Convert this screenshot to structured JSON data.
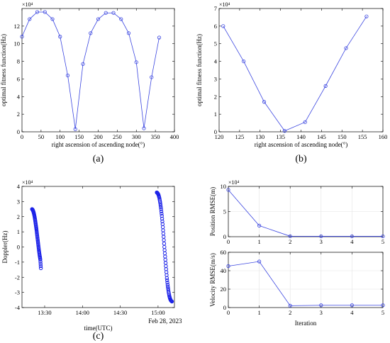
{
  "chart_data": [
    {
      "id": "a",
      "type": "line",
      "label": "(a)",
      "xlabel": "right ascension of ascending node(°)",
      "ylabel": "optimal fitness function(Hz)",
      "multiplier": "×10⁴",
      "xlim": [
        0,
        400
      ],
      "ylim": [
        0,
        140000
      ],
      "xticks": [
        0,
        50,
        100,
        150,
        200,
        250,
        300,
        350,
        400
      ],
      "yticks": [
        0,
        20000,
        40000,
        60000,
        80000,
        100000,
        120000
      ],
      "ytick_labels": [
        "0",
        "2",
        "4",
        "6",
        "8",
        "10",
        "12"
      ],
      "grid": false,
      "color": "#3b46e0",
      "x": [
        0,
        20,
        40,
        60,
        80,
        100,
        120,
        140,
        160,
        180,
        200,
        220,
        240,
        260,
        280,
        300,
        320,
        340,
        360
      ],
      "y": [
        108000,
        128000,
        136000,
        136000,
        128000,
        108000,
        64000,
        3000,
        77000,
        112000,
        128000,
        135000,
        135000,
        128000,
        112000,
        79000,
        4000,
        62000,
        107000
      ]
    },
    {
      "id": "b",
      "type": "line",
      "label": "(b)",
      "xlabel": "right ascension of ascending node(°)",
      "ylabel": "optimal fitness function(Hz)",
      "multiplier": "×10⁴",
      "xlim": [
        120,
        160
      ],
      "ylim": [
        0,
        70000
      ],
      "xticks": [
        120,
        125,
        130,
        135,
        140,
        145,
        150,
        155,
        160
      ],
      "yticks": [
        0,
        10000,
        20000,
        30000,
        40000,
        50000,
        60000,
        70000
      ],
      "ytick_labels": [
        "0",
        "1",
        "2",
        "3",
        "4",
        "5",
        "6",
        "7"
      ],
      "grid": false,
      "color": "#3b46e0",
      "x": [
        121,
        126,
        131,
        136,
        141,
        146,
        151,
        156
      ],
      "y": [
        60000,
        40000,
        17000,
        500,
        5500,
        26000,
        47500,
        65500
      ]
    },
    {
      "id": "c",
      "type": "scatter",
      "label": "(c)",
      "xlabel": "time(UTC)",
      "ylabel": "Doppler(Hz)",
      "multiplier": "×10⁴",
      "date_label": "Feb 28, 2023",
      "xlim": [
        "13:12",
        "15:13"
      ],
      "ylim": [
        -40000,
        40000
      ],
      "xticks": [
        "13:30",
        "14:00",
        "14:30",
        "15:00"
      ],
      "yticks": [
        -40000,
        -30000,
        -20000,
        -10000,
        0,
        10000,
        20000,
        30000,
        40000
      ],
      "ytick_labels": [
        "-4",
        "-3",
        "-2",
        "-1",
        "0",
        "1",
        "2",
        "3",
        "4"
      ],
      "grid": false,
      "color": "#1c22e8",
      "segments": [
        {
          "x_start": "13:20",
          "x_end": "13:27",
          "y": [
            25000,
            24500,
            23500,
            22000,
            20000,
            17500,
            14500,
            11500,
            8000,
            4500,
            1000,
            -2500,
            -5500,
            -8000,
            -14000
          ]
        },
        {
          "x_start": "14:59",
          "x_end": "15:11",
          "y": [
            36000,
            35500,
            34500,
            32500,
            29500,
            25500,
            20500,
            14500,
            7500,
            0,
            -7000,
            -14000,
            -20500,
            -25500,
            -29500,
            -32500,
            -34500,
            -35500,
            -36000
          ]
        }
      ]
    },
    {
      "id": "d1",
      "type": "line",
      "label": "(d)",
      "xlabel": "",
      "ylabel": "Position RMSE(m)",
      "multiplier": "×10⁴",
      "xlim": [
        0,
        5
      ],
      "ylim": [
        0,
        100000
      ],
      "xticks": [
        0,
        1,
        2,
        3,
        4,
        5
      ],
      "yticks": [
        0,
        50000,
        100000
      ],
      "ytick_labels": [
        "0",
        "5",
        "10"
      ],
      "grid": true,
      "color": "#3b46e0",
      "x": [
        0,
        1,
        2,
        3,
        4,
        5
      ],
      "y": [
        93000,
        22000,
        1000,
        800,
        800,
        800
      ]
    },
    {
      "id": "d2",
      "type": "line",
      "label": "",
      "xlabel": "Iteration",
      "ylabel": "Velocity RMSE(m/s)",
      "multiplier": "",
      "xlim": [
        0,
        5
      ],
      "ylim": [
        0,
        60
      ],
      "xticks": [
        0,
        1,
        2,
        3,
        4,
        5
      ],
      "yticks": [
        0,
        20,
        40,
        60
      ],
      "ytick_labels": [
        "0",
        "20",
        "40",
        "60"
      ],
      "grid": true,
      "color": "#3b46e0",
      "x": [
        0,
        1,
        2,
        3,
        4,
        5
      ],
      "y": [
        45,
        50,
        2,
        2.5,
        2.5,
        2.5
      ]
    }
  ]
}
